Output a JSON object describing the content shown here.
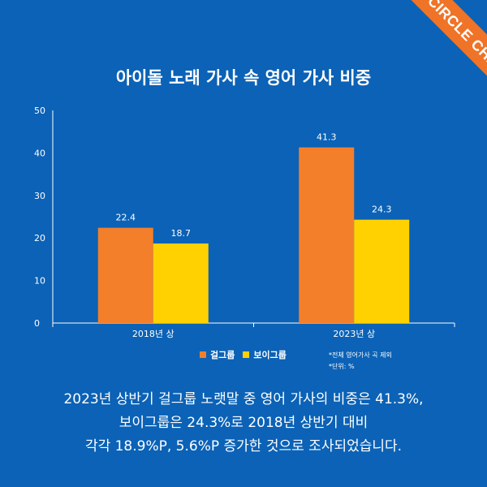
{
  "badge": "CIRCLE CHART",
  "colors": {
    "background": "#0b62b6",
    "girl_group": "#f47f2a",
    "boy_group": "#ffd100",
    "badge": "#ef7428"
  },
  "chart_data": {
    "type": "bar",
    "title": "아이돌 노래 가사 속 영어 가사 비중",
    "categories": [
      "2018년 상",
      "2023년 상"
    ],
    "series": [
      {
        "name": "걸그룹",
        "values": [
          22.4,
          41.3
        ]
      },
      {
        "name": "보이그룹",
        "values": [
          18.7,
          24.3
        ]
      }
    ],
    "ylim": [
      0,
      50
    ],
    "yticks": [
      0,
      10,
      20,
      30,
      40,
      50
    ],
    "grid": false,
    "legend": "bottom"
  },
  "notes": [
    "*전체 영어가사 곡 제외",
    "*단위: %"
  ],
  "caption": [
    "2023년 상반기 걸그룹 노랫말 중 영어 가사의 비중은 41.3%,",
    "보이그룹은 24.3%로 2018년 상반기 대비",
    "각각 18.9%P, 5.6%P 증가한 것으로 조사되었습니다."
  ]
}
